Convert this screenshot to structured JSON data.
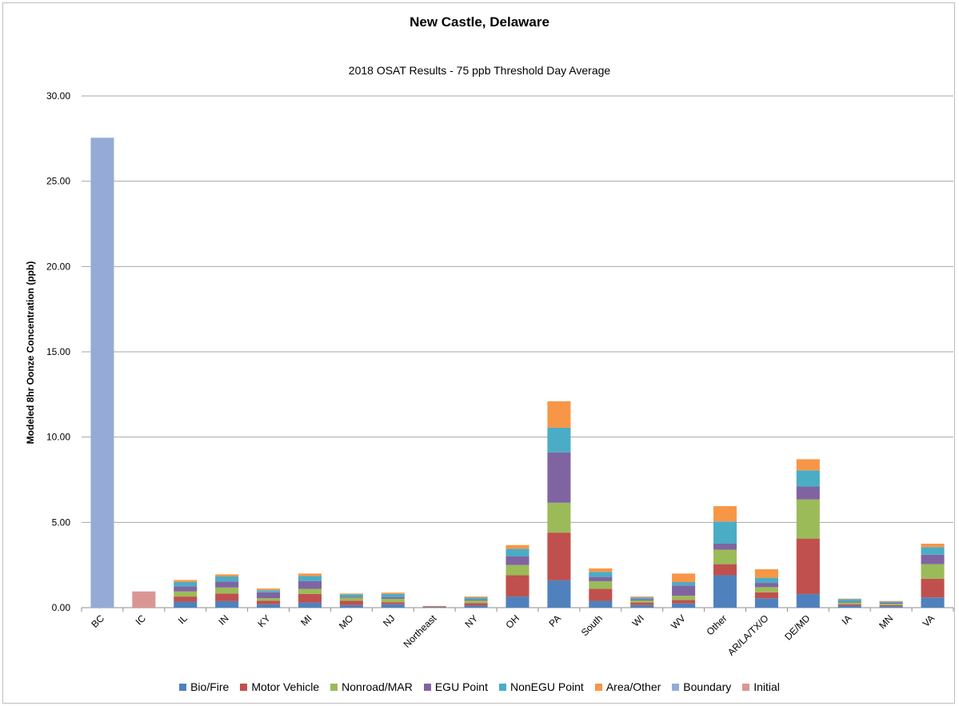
{
  "chart_data": {
    "type": "bar",
    "stacked": true,
    "title": "New Castle, Delaware",
    "subtitle": "2018 OSAT Results - 75 ppb Threshold Day Average",
    "xlabel": "",
    "ylabel": "Modeled 8hr Oonze Concentration (ppb)",
    "ylim": [
      0,
      30
    ],
    "yticks": [
      "0.00",
      "5.00",
      "10.00",
      "15.00",
      "20.00",
      "25.00",
      "30.00"
    ],
    "grid": "horizontal",
    "legend_position": "bottom",
    "categories": [
      "BC",
      "IC",
      "IL",
      "IN",
      "KY",
      "MI",
      "MO",
      "NJ",
      "Northeast",
      "NY",
      "OH",
      "PA",
      "South",
      "WI",
      "WV",
      "Other",
      "AR/LA/TX/O",
      "DE/MD",
      "IA",
      "MN",
      "VA"
    ],
    "series": [
      {
        "name": "Bio/Fire",
        "color": "#4F81BD",
        "values": [
          0,
          0,
          0.35,
          0.38,
          0.2,
          0.3,
          0.15,
          0.2,
          0.03,
          0.12,
          0.65,
          1.6,
          0.4,
          0.15,
          0.25,
          1.9,
          0.55,
          0.8,
          0.12,
          0.08,
          0.6
        ]
      },
      {
        "name": "Motor Vehicle",
        "color": "#C0504D",
        "values": [
          0,
          0,
          0.3,
          0.45,
          0.2,
          0.5,
          0.25,
          0.12,
          0.02,
          0.15,
          1.25,
          2.8,
          0.7,
          0.15,
          0.2,
          0.65,
          0.35,
          3.25,
          0.08,
          0.07,
          1.1
        ]
      },
      {
        "name": "Nonroad/MAR",
        "color": "#9BBB59",
        "values": [
          0,
          0,
          0.3,
          0.35,
          0.15,
          0.3,
          0.18,
          0.2,
          0.02,
          0.15,
          0.6,
          1.75,
          0.45,
          0.12,
          0.25,
          0.85,
          0.3,
          2.3,
          0.1,
          0.08,
          0.85
        ]
      },
      {
        "name": "EGU Point",
        "color": "#8064A2",
        "values": [
          0,
          0,
          0.3,
          0.35,
          0.35,
          0.45,
          0.05,
          0.1,
          0.01,
          0.05,
          0.5,
          2.95,
          0.25,
          0.08,
          0.6,
          0.35,
          0.25,
          0.75,
          0.05,
          0.05,
          0.55
        ]
      },
      {
        "name": "NonEGU Point",
        "color": "#4BACC6",
        "values": [
          0,
          0,
          0.25,
          0.3,
          0.12,
          0.3,
          0.15,
          0.18,
          0.01,
          0.12,
          0.45,
          1.45,
          0.3,
          0.1,
          0.2,
          1.3,
          0.3,
          0.95,
          0.15,
          0.08,
          0.45
        ]
      },
      {
        "name": "Area/Other",
        "color": "#F79646",
        "values": [
          0,
          0,
          0.12,
          0.12,
          0.1,
          0.15,
          0.05,
          0.08,
          0.01,
          0.06,
          0.22,
          1.55,
          0.2,
          0.05,
          0.5,
          0.9,
          0.5,
          0.65,
          0.03,
          0.03,
          0.2
        ]
      },
      {
        "name": "Boundary",
        "color": "#95ABD6",
        "values": [
          27.55,
          0,
          0,
          0,
          0,
          0,
          0,
          0,
          0,
          0,
          0,
          0,
          0,
          0,
          0,
          0,
          0,
          0,
          0,
          0,
          0
        ]
      },
      {
        "name": "Initial",
        "color": "#D99694",
        "values": [
          0,
          0.95,
          0,
          0,
          0,
          0,
          0,
          0,
          0,
          0,
          0,
          0,
          0,
          0,
          0,
          0,
          0,
          0,
          0,
          0,
          0
        ]
      }
    ]
  }
}
